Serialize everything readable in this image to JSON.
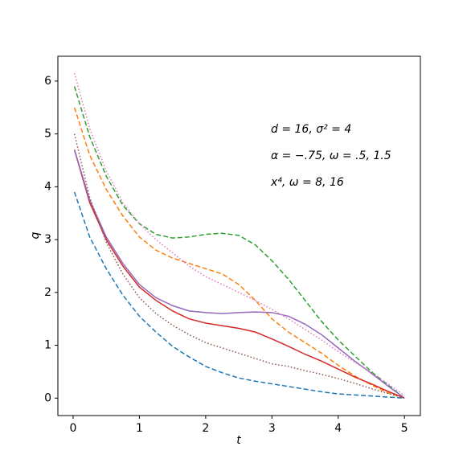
{
  "chart_data": {
    "type": "line",
    "x_label": "t",
    "y_label": "q",
    "annotations": [
      "d = 16, σ² = 4",
      "α = −.75, ω = .5, 1.5",
      "x⁴, ω = 8, 16"
    ],
    "x": [
      0.02,
      0.25,
      0.5,
      0.75,
      1,
      1.25,
      1.5,
      1.75,
      2,
      2.25,
      2.5,
      2.75,
      3,
      3.25,
      3.5,
      3.75,
      4,
      4.25,
      4.5,
      4.75,
      5
    ],
    "series": [
      {
        "color": "#1f77b4",
        "style": "dashed",
        "values": [
          3.9,
          3.05,
          2.45,
          1.95,
          1.55,
          1.25,
          0.98,
          0.78,
          0.6,
          0.48,
          0.38,
          0.32,
          0.27,
          0.22,
          0.17,
          0.12,
          0.08,
          0.06,
          0.04,
          0.02,
          0.0
        ]
      },
      {
        "color": "#ff7f0e",
        "style": "dashed",
        "values": [
          5.5,
          4.6,
          3.95,
          3.45,
          3.05,
          2.8,
          2.65,
          2.55,
          2.45,
          2.35,
          2.15,
          1.85,
          1.5,
          1.25,
          1.05,
          0.85,
          0.62,
          0.42,
          0.25,
          0.1,
          0.0
        ]
      },
      {
        "color": "#2ca02c",
        "style": "dashed",
        "values": [
          5.9,
          4.95,
          4.2,
          3.65,
          3.3,
          3.1,
          3.03,
          3.05,
          3.1,
          3.12,
          3.08,
          2.9,
          2.6,
          2.25,
          1.85,
          1.45,
          1.1,
          0.8,
          0.5,
          0.25,
          0.0
        ]
      },
      {
        "color": "#d62728",
        "style": "solid",
        "values": [
          4.7,
          3.7,
          3.0,
          2.5,
          2.1,
          1.85,
          1.65,
          1.5,
          1.42,
          1.37,
          1.32,
          1.25,
          1.12,
          0.98,
          0.83,
          0.7,
          0.55,
          0.4,
          0.27,
          0.13,
          0.0
        ]
      },
      {
        "color": "#9467bd",
        "style": "solid",
        "values": [
          4.7,
          3.75,
          3.05,
          2.55,
          2.15,
          1.9,
          1.75,
          1.65,
          1.62,
          1.6,
          1.62,
          1.63,
          1.62,
          1.55,
          1.4,
          1.2,
          0.95,
          0.7,
          0.47,
          0.23,
          0.0
        ]
      },
      {
        "color": "#8c564b",
        "style": "dotted",
        "values": [
          5.0,
          3.8,
          2.95,
          2.35,
          1.9,
          1.6,
          1.38,
          1.2,
          1.05,
          0.95,
          0.85,
          0.75,
          0.65,
          0.6,
          0.52,
          0.45,
          0.37,
          0.28,
          0.18,
          0.09,
          0.0
        ]
      },
      {
        "color": "#e377c2",
        "style": "dotted",
        "values": [
          6.15,
          5.1,
          4.3,
          3.7,
          3.3,
          3.0,
          2.75,
          2.5,
          2.3,
          2.15,
          2.0,
          1.85,
          1.68,
          1.5,
          1.3,
          1.1,
          0.88,
          0.68,
          0.48,
          0.27,
          0.05
        ]
      }
    ],
    "xlim": [
      -0.23,
      5.24
    ],
    "ylim": [
      -0.33,
      6.47
    ],
    "xticks": [
      0,
      1,
      2,
      3,
      4,
      5
    ],
    "yticks": [
      0,
      1,
      2,
      3,
      4,
      5,
      6
    ],
    "grid": false
  }
}
